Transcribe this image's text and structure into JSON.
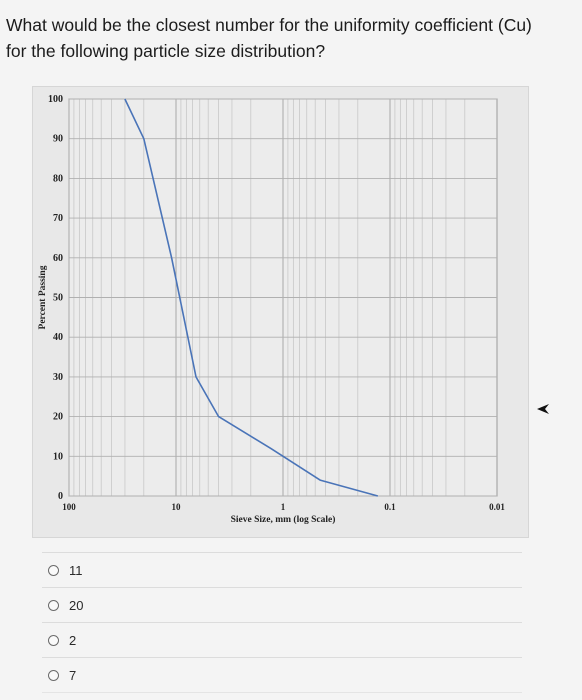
{
  "question": {
    "line1": "What would be the closest number for the uniformity coefficient (Cu)",
    "line2": "for the following particle size distribution?"
  },
  "chart_data": {
    "type": "line",
    "scale_x": "log-reversed",
    "xlabel": "Sieve Size, mm (log Scale)",
    "ylabel": "Percent Passing",
    "xlim": [
      100,
      0.01
    ],
    "ylim": [
      0,
      100
    ],
    "x_ticks": [
      "100",
      "10",
      "1",
      "0.1",
      "0.01"
    ],
    "y_ticks": [
      "100",
      "90",
      "80",
      "70",
      "60",
      "50",
      "40",
      "30",
      "20",
      "10",
      "0"
    ],
    "grid": true,
    "series": [
      {
        "color": "#4a74b8",
        "points": [
          {
            "x": 30,
            "y": 100
          },
          {
            "x": 20,
            "y": 90
          },
          {
            "x": 11,
            "y": 60
          },
          {
            "x": 6.5,
            "y": 30
          },
          {
            "x": 4,
            "y": 20
          },
          {
            "x": 1.3,
            "y": 12
          },
          {
            "x": 0.45,
            "y": 4
          },
          {
            "x": 0.13,
            "y": 0
          }
        ]
      }
    ]
  },
  "options": [
    "11",
    "20",
    "2",
    "7"
  ],
  "colors": {
    "curve": "#4a74b8",
    "grid": "#c8c8c8",
    "plot_bg": "#e8e8e8"
  }
}
